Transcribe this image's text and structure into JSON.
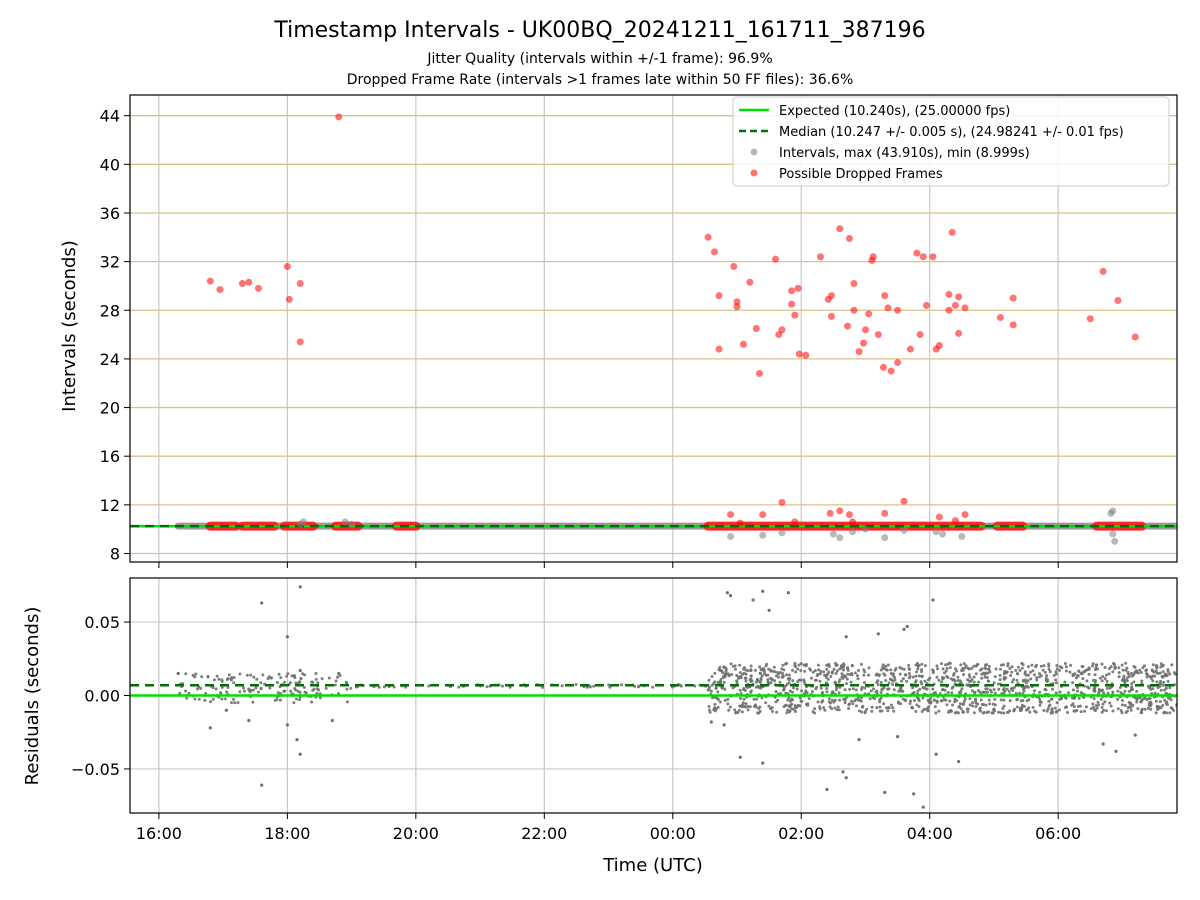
{
  "chart_data": [
    {
      "type": "scatter",
      "title": "Timestamp Intervals - UK00BQ_20241211_161711_387196",
      "subtitle_lines": [
        "Jitter Quality (intervals within +/-1 frame): 96.9%",
        "Dropped Frame Rate (intervals >1 frames late within 50 FF files): 36.6%"
      ],
      "xlabel": "",
      "ylabel": "Intervals (seconds)",
      "x_unit": "hours since 00:00 UTC (negative = previous day)",
      "xlim": [
        -8.45,
        7.85
      ],
      "ylim": [
        7.3,
        45.7
      ],
      "yticks": [
        8,
        12,
        16,
        20,
        24,
        28,
        32,
        36,
        40,
        44
      ],
      "grid": true,
      "legend_position": "upper right",
      "legend": [
        {
          "label": "Expected (10.240s), (25.00000 fps)",
          "style": "line",
          "color": "#00e000"
        },
        {
          "label": "Median (10.247 +/- 0.005 s), (24.98241 +/- 0.01 fps)",
          "style": "dashed",
          "color": "#007000"
        },
        {
          "label": "Intervals, max (43.910s), min (8.999s)",
          "style": "marker",
          "color": "#808080"
        },
        {
          "label": "Possible Dropped Frames",
          "style": "marker",
          "color": "#ff0000"
        }
      ],
      "expected_value": 10.24,
      "median_value": 10.247,
      "interval_segments": [
        [
          -7.7,
          7.85
        ]
      ],
      "gray_outliers": [
        {
          "x": -5.8,
          "y": 10.4
        },
        {
          "x": -5.75,
          "y": 10.6
        },
        {
          "x": -5.1,
          "y": 10.6
        },
        {
          "x": -5.0,
          "y": 10.4
        },
        {
          "x": 0.9,
          "y": 9.4
        },
        {
          "x": 1.4,
          "y": 9.5
        },
        {
          "x": 1.7,
          "y": 9.7
        },
        {
          "x": 2.5,
          "y": 9.6
        },
        {
          "x": 2.6,
          "y": 9.3
        },
        {
          "x": 2.8,
          "y": 9.8
        },
        {
          "x": 3.0,
          "y": 10.0
        },
        {
          "x": 3.3,
          "y": 9.3
        },
        {
          "x": 3.6,
          "y": 9.9
        },
        {
          "x": 4.1,
          "y": 9.8
        },
        {
          "x": 4.2,
          "y": 9.6
        },
        {
          "x": 4.5,
          "y": 9.4
        },
        {
          "x": 6.82,
          "y": 11.3
        },
        {
          "x": 6.85,
          "y": 11.5
        },
        {
          "x": 6.85,
          "y": 9.6
        },
        {
          "x": 6.88,
          "y": 9.0
        }
      ],
      "red_bands": [
        [
          -7.2,
          -6.8
        ],
        [
          -6.7,
          -6.2
        ],
        [
          -6.05,
          -5.6
        ],
        [
          -5.25,
          -4.9
        ],
        [
          -4.3,
          -4.0
        ],
        [
          0.55,
          4.8
        ],
        [
          5.05,
          5.45
        ],
        [
          6.6,
          7.3
        ]
      ],
      "red_points": [
        {
          "x": -7.2,
          "y": 30.4
        },
        {
          "x": -7.05,
          "y": 29.7
        },
        {
          "x": -6.7,
          "y": 30.2
        },
        {
          "x": -6.6,
          "y": 30.3
        },
        {
          "x": -6.45,
          "y": 29.8
        },
        {
          "x": -6.0,
          "y": 31.6
        },
        {
          "x": -5.97,
          "y": 28.9
        },
        {
          "x": -5.8,
          "y": 30.2
        },
        {
          "x": -5.8,
          "y": 25.4
        },
        {
          "x": -5.2,
          "y": 43.9
        },
        {
          "x": 0.55,
          "y": 34.0
        },
        {
          "x": 0.65,
          "y": 32.8
        },
        {
          "x": 0.72,
          "y": 29.2
        },
        {
          "x": 0.72,
          "y": 24.8
        },
        {
          "x": 0.95,
          "y": 31.6
        },
        {
          "x": 1.0,
          "y": 28.7
        },
        {
          "x": 1.0,
          "y": 28.3
        },
        {
          "x": 1.1,
          "y": 25.2
        },
        {
          "x": 1.2,
          "y": 30.3
        },
        {
          "x": 1.3,
          "y": 26.5
        },
        {
          "x": 1.35,
          "y": 22.8
        },
        {
          "x": 1.6,
          "y": 32.2
        },
        {
          "x": 1.65,
          "y": 26.0
        },
        {
          "x": 1.7,
          "y": 26.4
        },
        {
          "x": 1.85,
          "y": 29.6
        },
        {
          "x": 1.85,
          "y": 28.5
        },
        {
          "x": 1.9,
          "y": 27.6
        },
        {
          "x": 1.95,
          "y": 29.8
        },
        {
          "x": 1.97,
          "y": 24.4
        },
        {
          "x": 2.07,
          "y": 24.3
        },
        {
          "x": 2.3,
          "y": 32.4
        },
        {
          "x": 2.42,
          "y": 28.9
        },
        {
          "x": 2.47,
          "y": 29.2
        },
        {
          "x": 2.47,
          "y": 27.5
        },
        {
          "x": 2.6,
          "y": 34.7
        },
        {
          "x": 2.72,
          "y": 26.7
        },
        {
          "x": 2.75,
          "y": 33.9
        },
        {
          "x": 2.82,
          "y": 30.2
        },
        {
          "x": 2.82,
          "y": 28.0
        },
        {
          "x": 2.9,
          "y": 24.6
        },
        {
          "x": 2.97,
          "y": 25.3
        },
        {
          "x": 3.0,
          "y": 26.4
        },
        {
          "x": 3.05,
          "y": 27.7
        },
        {
          "x": 3.1,
          "y": 32.1
        },
        {
          "x": 3.12,
          "y": 32.4
        },
        {
          "x": 3.2,
          "y": 26.0
        },
        {
          "x": 3.28,
          "y": 23.3
        },
        {
          "x": 3.3,
          "y": 29.2
        },
        {
          "x": 3.35,
          "y": 28.2
        },
        {
          "x": 3.4,
          "y": 23.0
        },
        {
          "x": 3.5,
          "y": 23.7
        },
        {
          "x": 3.5,
          "y": 28.0
        },
        {
          "x": 3.7,
          "y": 24.8
        },
        {
          "x": 3.8,
          "y": 32.7
        },
        {
          "x": 3.85,
          "y": 26.0
        },
        {
          "x": 3.9,
          "y": 32.4
        },
        {
          "x": 3.95,
          "y": 28.4
        },
        {
          "x": 4.05,
          "y": 32.4
        },
        {
          "x": 4.1,
          "y": 24.8
        },
        {
          "x": 4.15,
          "y": 25.1
        },
        {
          "x": 4.3,
          "y": 28.0
        },
        {
          "x": 4.3,
          "y": 29.3
        },
        {
          "x": 4.35,
          "y": 34.4
        },
        {
          "x": 4.4,
          "y": 28.4
        },
        {
          "x": 4.45,
          "y": 26.1
        },
        {
          "x": 4.45,
          "y": 29.1
        },
        {
          "x": 4.55,
          "y": 28.2
        },
        {
          "x": 5.1,
          "y": 27.4
        },
        {
          "x": 5.3,
          "y": 26.8
        },
        {
          "x": 5.3,
          "y": 29.0
        },
        {
          "x": 6.5,
          "y": 27.3
        },
        {
          "x": 6.7,
          "y": 31.2
        },
        {
          "x": 6.93,
          "y": 28.8
        },
        {
          "x": 7.2,
          "y": 25.8
        },
        {
          "x": 0.9,
          "y": 11.2
        },
        {
          "x": 1.05,
          "y": 10.5
        },
        {
          "x": 1.4,
          "y": 11.2
        },
        {
          "x": 1.7,
          "y": 12.2
        },
        {
          "x": 1.9,
          "y": 10.6
        },
        {
          "x": 2.45,
          "y": 11.3
        },
        {
          "x": 2.6,
          "y": 11.5
        },
        {
          "x": 2.75,
          "y": 11.2
        },
        {
          "x": 2.8,
          "y": 10.6
        },
        {
          "x": 3.3,
          "y": 11.3
        },
        {
          "x": 3.6,
          "y": 12.3
        },
        {
          "x": 4.15,
          "y": 11.0
        },
        {
          "x": 4.4,
          "y": 10.7
        },
        {
          "x": 4.55,
          "y": 11.2
        }
      ]
    },
    {
      "type": "scatter",
      "title": "",
      "xlabel": "Time (UTC)",
      "ylabel": "Residuals (seconds)",
      "xlim": [
        -8.45,
        7.85
      ],
      "ylim": [
        -0.08,
        0.08
      ],
      "yticks": [
        -0.05,
        0.0,
        0.05
      ],
      "ytick_labels": [
        "−0.05",
        "0.00",
        "0.05"
      ],
      "xticks": [
        -8,
        -6,
        -4,
        -2,
        0,
        2,
        4,
        6
      ],
      "xtick_labels": [
        "16:00",
        "18:00",
        "20:00",
        "22:00",
        "00:00",
        "02:00",
        "04:00",
        "06:00"
      ],
      "grid": true,
      "expected_residual": 0.0,
      "median_residual": 0.007,
      "residual_points": [
        {
          "x": -6.4,
          "y": 0.063
        },
        {
          "x": -5.8,
          "y": 0.074
        },
        {
          "x": -6.0,
          "y": 0.04
        },
        {
          "x": -5.8,
          "y": 0.017
        },
        {
          "x": -5.85,
          "y": -0.03
        },
        {
          "x": -5.8,
          "y": -0.04
        },
        {
          "x": -6.4,
          "y": -0.061
        },
        {
          "x": -7.2,
          "y": -0.022
        },
        {
          "x": -6.95,
          "y": -0.01
        },
        {
          "x": -6.6,
          "y": -0.017
        },
        {
          "x": -6.0,
          "y": -0.02
        },
        {
          "x": -5.3,
          "y": -0.017
        },
        {
          "x": -7.7,
          "y": 0.015
        },
        {
          "x": -5.2,
          "y": 0.015
        },
        {
          "x": 0.85,
          "y": 0.07
        },
        {
          "x": 0.9,
          "y": 0.068
        },
        {
          "x": 1.25,
          "y": 0.065
        },
        {
          "x": 1.4,
          "y": 0.071
        },
        {
          "x": 1.5,
          "y": 0.058
        },
        {
          "x": 1.8,
          "y": 0.07
        },
        {
          "x": 4.05,
          "y": 0.065
        },
        {
          "x": 2.7,
          "y": 0.04
        },
        {
          "x": 3.2,
          "y": 0.042
        },
        {
          "x": 3.6,
          "y": 0.045
        },
        {
          "x": 3.65,
          "y": 0.047
        },
        {
          "x": 2.4,
          "y": -0.064
        },
        {
          "x": 2.65,
          "y": -0.052
        },
        {
          "x": 2.7,
          "y": -0.056
        },
        {
          "x": 3.3,
          "y": -0.066
        },
        {
          "x": 3.75,
          "y": -0.067
        },
        {
          "x": 3.9,
          "y": -0.076
        },
        {
          "x": 1.05,
          "y": -0.042
        },
        {
          "x": 1.4,
          "y": -0.046
        },
        {
          "x": 4.1,
          "y": -0.04
        },
        {
          "x": 4.45,
          "y": -0.045
        },
        {
          "x": 6.7,
          "y": -0.033
        },
        {
          "x": 6.9,
          "y": -0.038
        },
        {
          "x": 7.2,
          "y": -0.027
        },
        {
          "x": 0.6,
          "y": -0.018
        },
        {
          "x": 0.8,
          "y": -0.02
        },
        {
          "x": 2.9,
          "y": -0.03
        },
        {
          "x": 3.5,
          "y": -0.028
        }
      ],
      "residual_clusters": [
        {
          "x_range": [
            -7.7,
            -5.0
          ],
          "y_range": [
            -0.005,
            0.015
          ],
          "density": 160
        },
        {
          "x_range": [
            -5.0,
            0.55
          ],
          "y_range": [
            0.0055,
            0.0075
          ],
          "density": 60
        },
        {
          "x_range": [
            0.55,
            7.85
          ],
          "y_range": [
            -0.012,
            0.022
          ],
          "density": 1400
        }
      ]
    }
  ]
}
